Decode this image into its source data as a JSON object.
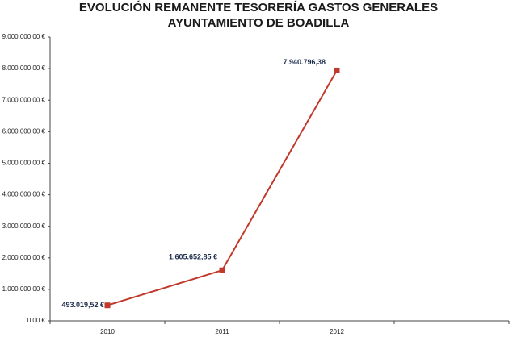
{
  "chart_data": {
    "type": "line",
    "title": [
      "EVOLUCIÓN REMANENTE TESORERÍA GASTOS GENERALES",
      "AYUNTAMIENTO DE BOADILLA"
    ],
    "categories": [
      "2010",
      "2011",
      "2012",
      null
    ],
    "values": [
      493019.52,
      1605652.85,
      7940796.38,
      null
    ],
    "value_labels": [
      "493.019,52 €",
      "1.605.652,85 €",
      "7.940.796,38",
      null
    ],
    "color": "#c0392b",
    "ylim": [
      0,
      9000000
    ],
    "yticks": [
      {
        "value": 0,
        "label": "0,00 €"
      },
      {
        "value": 1000000,
        "label": "1.000.000,00 €"
      },
      {
        "value": 2000000,
        "label": "2.000.000,00 €"
      },
      {
        "value": 3000000,
        "label": "3.000.000,00 €"
      },
      {
        "value": 4000000,
        "label": "4.000.000,00 €"
      },
      {
        "value": 5000000,
        "label": "5.000.000,00 €"
      },
      {
        "value": 6000000,
        "label": "6.000.000,00 €"
      },
      {
        "value": 7000000,
        "label": "7.000.000,00 €"
      },
      {
        "value": 8000000,
        "label": "8.000.000,00 €"
      },
      {
        "value": 9000000,
        "label": "9.000.000,00 €"
      }
    ],
    "grid": false
  }
}
